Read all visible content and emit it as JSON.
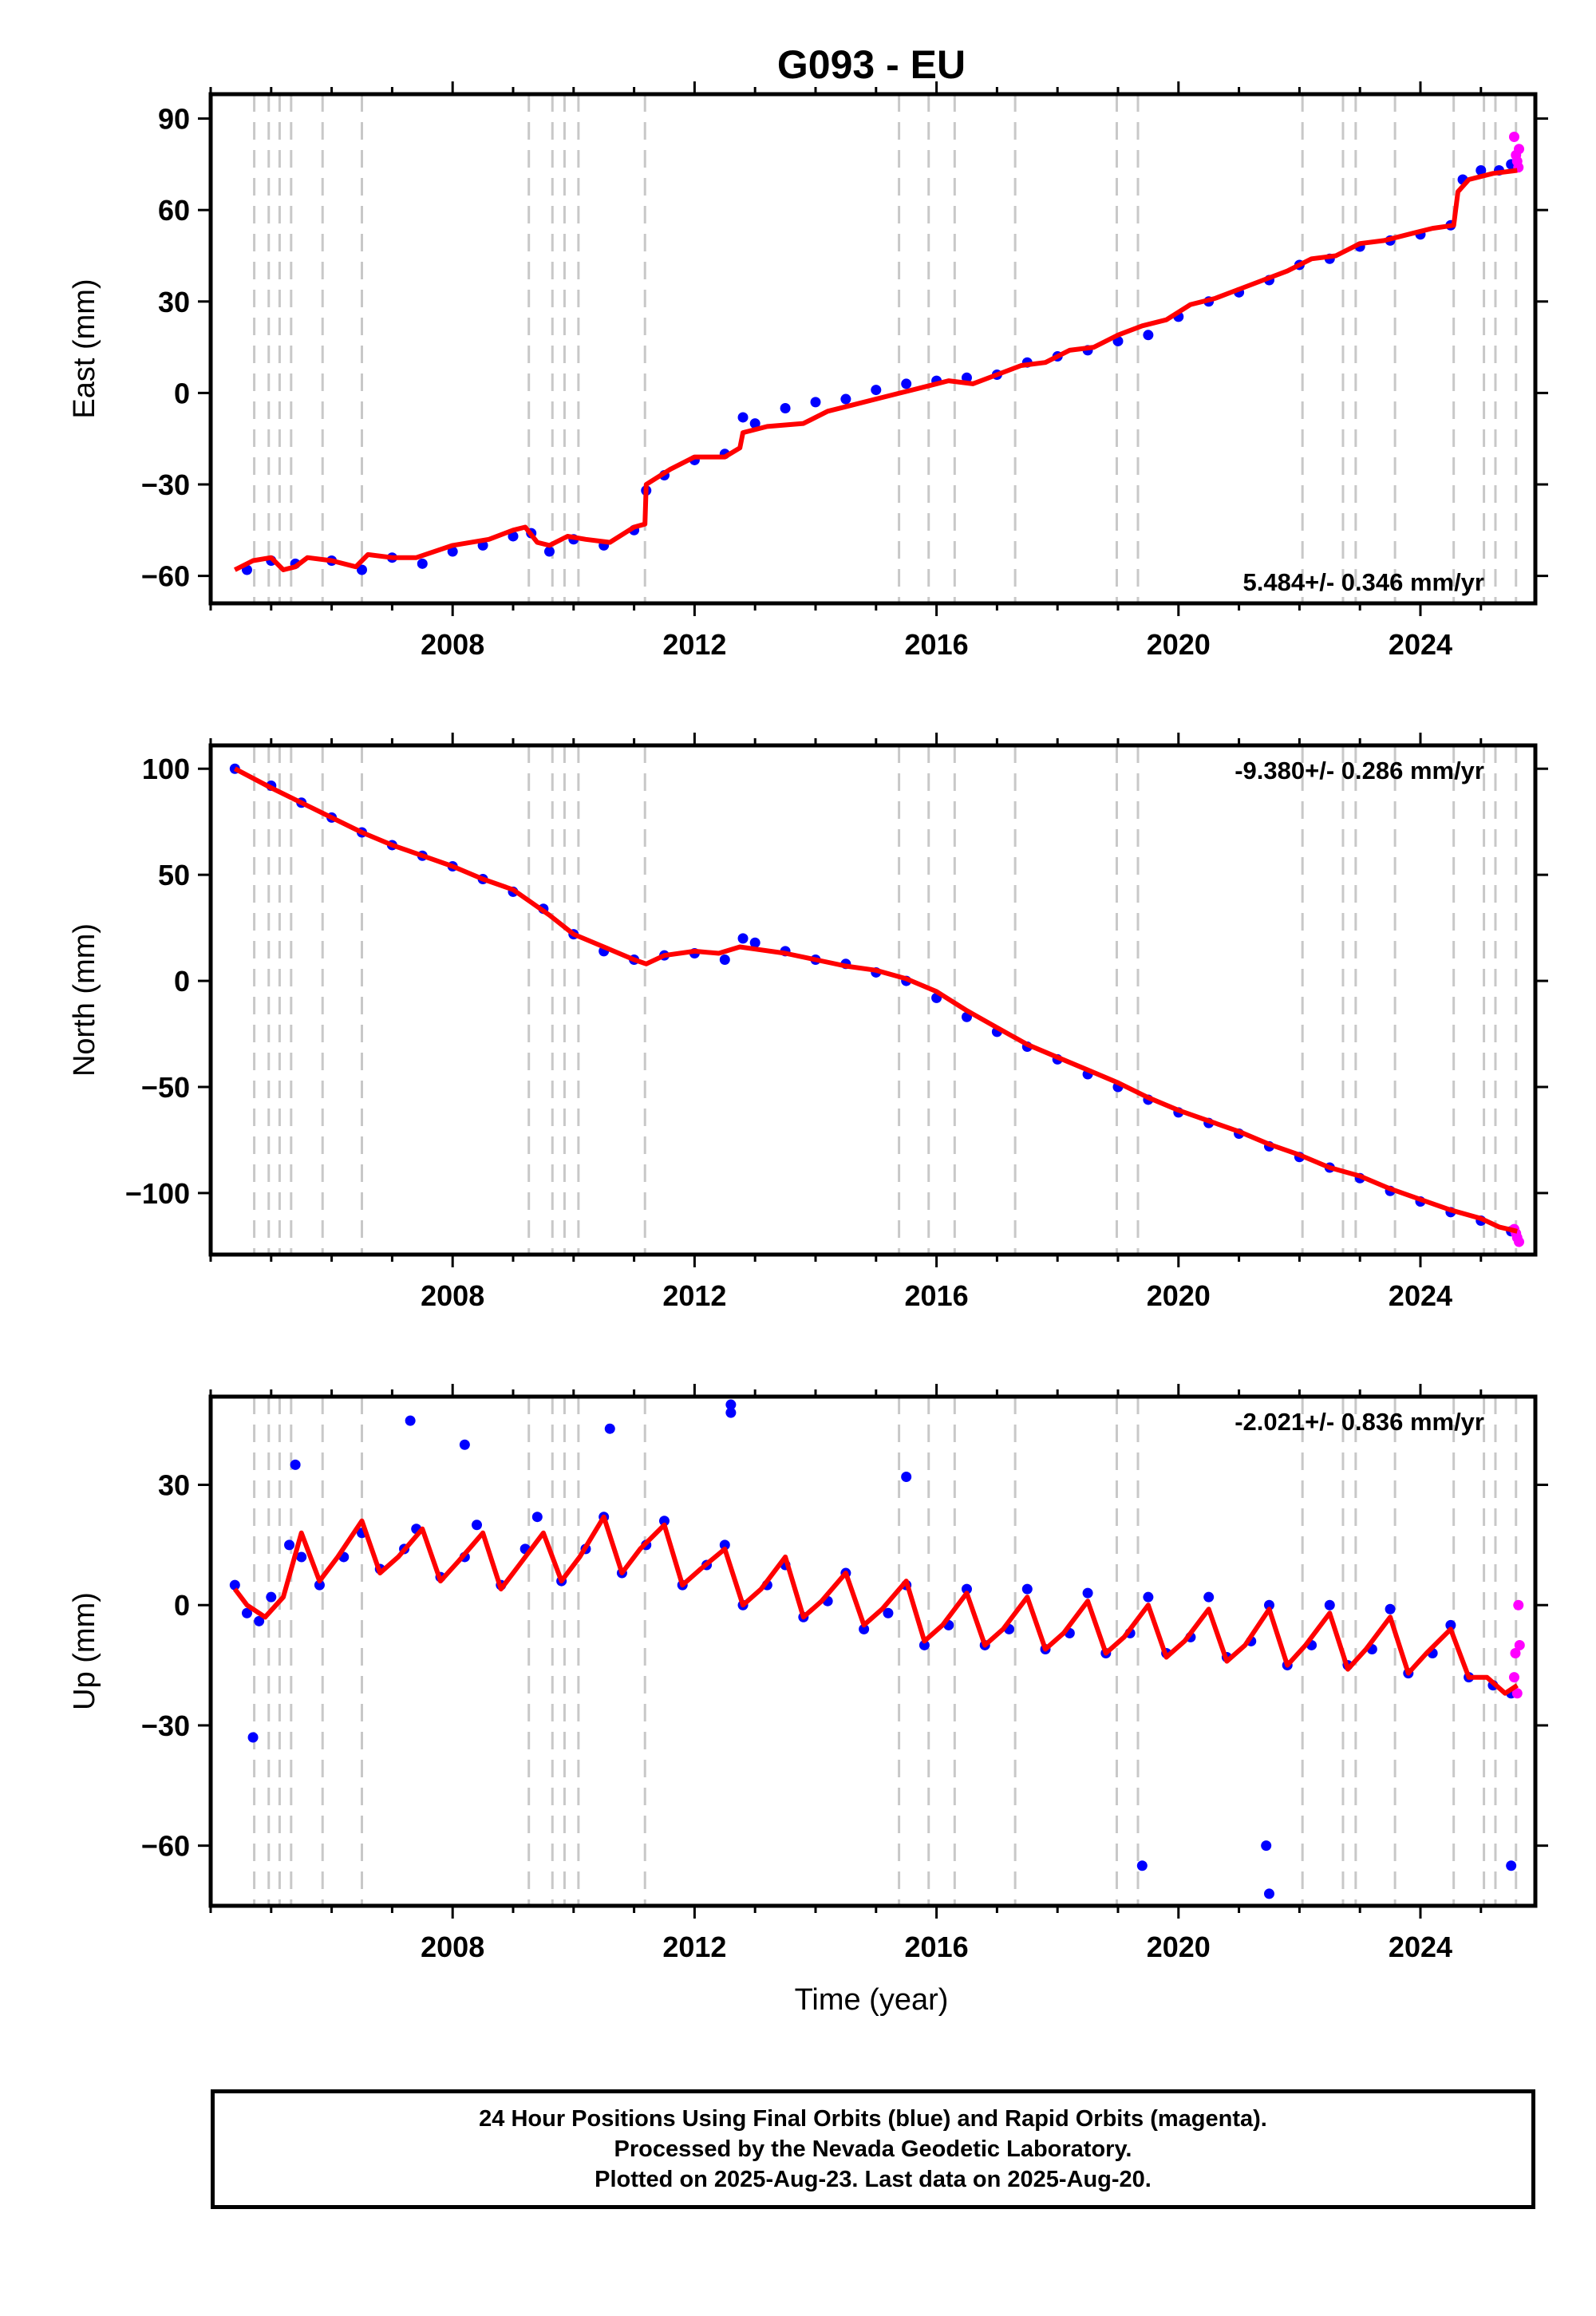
{
  "title": "G093 - EU",
  "x_axis_label": "Time (year)",
  "colors": {
    "final_points": "#0000ff",
    "rapid_points": "#ff00ff",
    "model_line": "#ff0000",
    "event_lines": "#c8c8c8"
  },
  "footer": {
    "line1": "24 Hour Positions Using Final Orbits (blue) and Rapid Orbits (magenta).",
    "line2": "Processed by the Nevada Geodetic Laboratory.",
    "line3": "Plotted on 2025-Aug-23. Last data on 2025-Aug-20."
  },
  "chart_data": [
    {
      "type": "scatter",
      "ylabel": "East (mm)",
      "rate_label": "5.484+/- 0.346 mm/yr",
      "rate_position": "bottom-right",
      "xlim": [
        2004.0,
        2025.9
      ],
      "ylim": [
        -69,
        98
      ],
      "x_ticks": [
        2008,
        2012,
        2016,
        2020,
        2024
      ],
      "y_ticks": [
        90,
        60,
        30,
        0,
        -30,
        -60
      ],
      "y_tick_labels": [
        "90",
        "60",
        "30",
        "0",
        "−30",
        "−60"
      ],
      "series": [
        {
          "role": "final_points",
          "x": [
            2004.6,
            2005.0,
            2005.4,
            2006.0,
            2006.5,
            2007.0,
            2007.5,
            2008.0,
            2008.5,
            2009.0,
            2009.3,
            2009.6,
            2010.0,
            2010.5,
            2011.0,
            2011.2,
            2011.5,
            2012.0,
            2012.5,
            2012.8,
            2013.0,
            2013.5,
            2014.0,
            2014.5,
            2015.0,
            2015.5,
            2016.0,
            2016.5,
            2017.0,
            2017.5,
            2018.0,
            2018.5,
            2019.0,
            2019.5,
            2020.0,
            2020.5,
            2021.0,
            2021.5,
            2022.0,
            2022.5,
            2023.0,
            2023.5,
            2024.0,
            2024.5,
            2024.7,
            2025.0,
            2025.3,
            2025.5
          ],
          "y": [
            -58,
            -55,
            -56,
            -55,
            -58,
            -54,
            -56,
            -52,
            -50,
            -47,
            -46,
            -52,
            -48,
            -50,
            -45,
            -32,
            -27,
            -22,
            -20,
            -8,
            -10,
            -5,
            -3,
            -2,
            1,
            3,
            4,
            5,
            6,
            10,
            12,
            14,
            17,
            19,
            25,
            30,
            33,
            37,
            42,
            44,
            48,
            50,
            52,
            55,
            70,
            73,
            73,
            75
          ]
        },
        {
          "role": "rapid_points",
          "x": [
            2025.55,
            2025.58,
            2025.6,
            2025.62,
            2025.63
          ],
          "y": [
            84,
            78,
            76,
            74,
            80
          ]
        },
        {
          "role": "model_line",
          "x": [
            2004.4,
            2004.7,
            2005.0,
            2005.2,
            2005.4,
            2005.6,
            2006.0,
            2006.4,
            2006.6,
            2007.0,
            2007.4,
            2008.0,
            2008.6,
            2009.0,
            2009.2,
            2009.4,
            2009.6,
            2009.9,
            2010.2,
            2010.6,
            2011.0,
            2011.18,
            2011.2,
            2011.6,
            2012.0,
            2012.5,
            2012.75,
            2012.8,
            2013.2,
            2013.8,
            2014.2,
            2014.6,
            2015.0,
            2015.4,
            2015.8,
            2016.2,
            2016.6,
            2017.0,
            2017.4,
            2017.8,
            2018.2,
            2018.6,
            2019.0,
            2019.4,
            2019.8,
            2020.2,
            2020.6,
            2021.0,
            2021.4,
            2021.8,
            2022.2,
            2022.6,
            2023.0,
            2023.4,
            2023.8,
            2024.2,
            2024.55,
            2024.62,
            2024.8,
            2025.2,
            2025.6
          ],
          "y": [
            -58,
            -55,
            -54,
            -58,
            -57,
            -54,
            -55,
            -57,
            -53,
            -54,
            -54,
            -50,
            -48,
            -45,
            -44,
            -49,
            -50,
            -47,
            -48,
            -49,
            -44,
            -43,
            -30,
            -25,
            -21,
            -21,
            -18,
            -13,
            -11,
            -10,
            -6,
            -4,
            -2,
            0,
            2,
            4,
            3,
            6,
            9,
            10,
            14,
            15,
            19,
            22,
            24,
            29,
            31,
            34,
            37,
            40,
            44,
            45,
            49,
            50,
            52,
            54,
            55,
            66,
            70,
            72,
            73
          ]
        }
      ]
    },
    {
      "type": "scatter",
      "ylabel": "North (mm)",
      "rate_label": "-9.380+/- 0.286 mm/yr",
      "rate_position": "top-right",
      "xlim": [
        2004.0,
        2025.9
      ],
      "ylim": [
        -129,
        111
      ],
      "x_ticks": [
        2008,
        2012,
        2016,
        2020,
        2024
      ],
      "y_ticks": [
        100,
        50,
        0,
        -50,
        -100
      ],
      "y_tick_labels": [
        "100",
        "50",
        "0",
        "−50",
        "−100"
      ],
      "series": [
        {
          "role": "final_points",
          "x": [
            2004.4,
            2005.0,
            2005.5,
            2006.0,
            2006.5,
            2007.0,
            2007.5,
            2008.0,
            2008.5,
            2009.0,
            2009.5,
            2010.0,
            2010.5,
            2011.0,
            2011.5,
            2012.0,
            2012.5,
            2012.8,
            2013.0,
            2013.5,
            2014.0,
            2014.5,
            2015.0,
            2015.5,
            2016.0,
            2016.5,
            2017.0,
            2017.5,
            2018.0,
            2018.5,
            2019.0,
            2019.5,
            2020.0,
            2020.5,
            2021.0,
            2021.5,
            2022.0,
            2022.5,
            2023.0,
            2023.5,
            2024.0,
            2024.5,
            2025.0,
            2025.5
          ],
          "y": [
            100,
            92,
            84,
            77,
            70,
            64,
            59,
            54,
            48,
            42,
            34,
            22,
            14,
            10,
            12,
            13,
            10,
            20,
            18,
            14,
            10,
            8,
            4,
            0,
            -8,
            -17,
            -24,
            -31,
            -37,
            -44,
            -50,
            -56,
            -62,
            -67,
            -72,
            -78,
            -83,
            -88,
            -93,
            -99,
            -104,
            -109,
            -113,
            -118
          ]
        },
        {
          "role": "rapid_points",
          "x": [
            2025.55,
            2025.58,
            2025.6,
            2025.63
          ],
          "y": [
            -117,
            -119,
            -121,
            -123
          ]
        },
        {
          "role": "model_line",
          "x": [
            2004.4,
            2005.0,
            2005.5,
            2006.0,
            2006.5,
            2007.0,
            2007.5,
            2008.0,
            2008.5,
            2009.0,
            2009.3,
            2009.6,
            2010.0,
            2010.5,
            2011.0,
            2011.2,
            2011.5,
            2012.0,
            2012.4,
            2012.75,
            2013.0,
            2013.5,
            2014.0,
            2014.5,
            2015.0,
            2015.5,
            2016.0,
            2016.5,
            2017.0,
            2017.5,
            2018.0,
            2018.5,
            2019.0,
            2019.5,
            2020.0,
            2020.5,
            2021.0,
            2021.5,
            2022.0,
            2022.5,
            2023.0,
            2023.5,
            2024.0,
            2024.5,
            2025.0,
            2025.3,
            2025.6
          ],
          "y": [
            100,
            91,
            84,
            77,
            70,
            64,
            59,
            54,
            48,
            43,
            37,
            31,
            22,
            16,
            10,
            8,
            12,
            14,
            13,
            16,
            15,
            13,
            10,
            7,
            5,
            1,
            -5,
            -14,
            -22,
            -30,
            -36,
            -42,
            -48,
            -55,
            -61,
            -66,
            -71,
            -77,
            -82,
            -88,
            -92,
            -98,
            -103,
            -108,
            -112,
            -116,
            -118
          ]
        }
      ]
    },
    {
      "type": "scatter",
      "ylabel": "Up (mm)",
      "rate_label": "-2.021+/- 0.836 mm/yr",
      "rate_position": "top-right",
      "xlim": [
        2004.0,
        2025.9
      ],
      "ylim": [
        -75,
        52
      ],
      "x_ticks": [
        2008,
        2012,
        2016,
        2020,
        2024
      ],
      "y_ticks": [
        30,
        0,
        -30,
        -60
      ],
      "y_tick_labels": [
        "30",
        "0",
        "−30",
        "−60"
      ],
      "series": [
        {
          "role": "final_points",
          "x": [
            2004.4,
            2004.6,
            2004.8,
            2005.0,
            2005.3,
            2005.5,
            2005.8,
            2006.2,
            2006.5,
            2006.8,
            2007.2,
            2007.4,
            2007.8,
            2008.2,
            2008.4,
            2008.8,
            2009.2,
            2009.4,
            2009.8,
            2010.2,
            2010.5,
            2010.8,
            2011.2,
            2011.5,
            2011.8,
            2012.2,
            2012.5,
            2012.8,
            2013.2,
            2013.5,
            2013.8,
            2014.2,
            2014.5,
            2014.8,
            2015.2,
            2015.5,
            2015.8,
            2016.2,
            2016.5,
            2016.8,
            2017.2,
            2017.5,
            2017.8,
            2018.2,
            2018.5,
            2018.8,
            2019.2,
            2019.5,
            2019.8,
            2020.2,
            2020.5,
            2020.8,
            2021.2,
            2021.5,
            2021.8,
            2022.2,
            2022.5,
            2022.8,
            2023.2,
            2023.5,
            2023.8,
            2024.2,
            2024.5,
            2024.8,
            2025.2,
            2025.5,
            2004.7,
            2007.3,
            2010.6,
            2012.6,
            2015.5,
            2019.4,
            2021.5,
            2021.45,
            2025.5,
            2005.4,
            2008.2,
            2012.6
          ],
          "y": [
            5,
            -2,
            -4,
            2,
            15,
            12,
            5,
            12,
            18,
            9,
            14,
            19,
            7,
            12,
            20,
            5,
            14,
            22,
            6,
            14,
            22,
            8,
            15,
            21,
            5,
            10,
            15,
            0,
            5,
            10,
            -3,
            1,
            8,
            -6,
            -2,
            5,
            -10,
            -5,
            4,
            -10,
            -6,
            4,
            -11,
            -7,
            3,
            -12,
            -7,
            2,
            -12,
            -8,
            2,
            -13,
            -9,
            0,
            -15,
            -10,
            0,
            -15,
            -11,
            -1,
            -17,
            -12,
            -5,
            -18,
            -20,
            -22,
            -33,
            46,
            44,
            50,
            32,
            -65,
            -72,
            -60,
            -65,
            35,
            40,
            48
          ]
        },
        {
          "role": "rapid_points",
          "x": [
            2025.55,
            2025.57,
            2025.6,
            2025.62,
            2025.64
          ],
          "y": [
            -18,
            -12,
            -22,
            0,
            -10
          ]
        },
        {
          "role": "model_line",
          "x": [
            2004.4,
            2004.6,
            2004.9,
            2005.2,
            2005.5,
            2005.8,
            2006.1,
            2006.5,
            2006.8,
            2007.1,
            2007.5,
            2007.8,
            2008.1,
            2008.5,
            2008.8,
            2009.1,
            2009.5,
            2009.8,
            2010.1,
            2010.5,
            2010.8,
            2011.1,
            2011.5,
            2011.8,
            2012.1,
            2012.5,
            2012.8,
            2013.1,
            2013.5,
            2013.8,
            2014.1,
            2014.5,
            2014.8,
            2015.1,
            2015.5,
            2015.8,
            2016.1,
            2016.5,
            2016.8,
            2017.1,
            2017.5,
            2017.8,
            2018.1,
            2018.5,
            2018.8,
            2019.1,
            2019.5,
            2019.8,
            2020.1,
            2020.5,
            2020.8,
            2021.1,
            2021.5,
            2021.8,
            2022.1,
            2022.5,
            2022.8,
            2023.1,
            2023.5,
            2023.8,
            2024.1,
            2024.5,
            2024.8,
            2025.1,
            2025.4,
            2025.6
          ],
          "y": [
            4,
            0,
            -3,
            2,
            18,
            6,
            12,
            21,
            8,
            12,
            19,
            6,
            11,
            18,
            4,
            10,
            18,
            6,
            12,
            22,
            8,
            14,
            20,
            5,
            9,
            14,
            0,
            4,
            12,
            -3,
            1,
            8,
            -5,
            -1,
            6,
            -9,
            -5,
            3,
            -10,
            -6,
            2,
            -11,
            -7,
            1,
            -12,
            -8,
            0,
            -13,
            -9,
            -1,
            -14,
            -10,
            -1,
            -15,
            -10,
            -2,
            -16,
            -11,
            -3,
            -17,
            -12,
            -6,
            -18,
            -18,
            -22,
            -20
          ]
        }
      ]
    }
  ],
  "event_lines_years": [
    2004.72,
    2004.96,
    2005.14,
    2005.33,
    2005.85,
    2006.5,
    2009.26,
    2009.65,
    2009.85,
    2010.08,
    2011.18,
    2015.38,
    2015.87,
    2016.3,
    2017.3,
    2018.98,
    2019.33,
    2022.05,
    2022.72,
    2022.93,
    2023.58,
    2024.55,
    2025.05,
    2025.24,
    2025.58
  ]
}
